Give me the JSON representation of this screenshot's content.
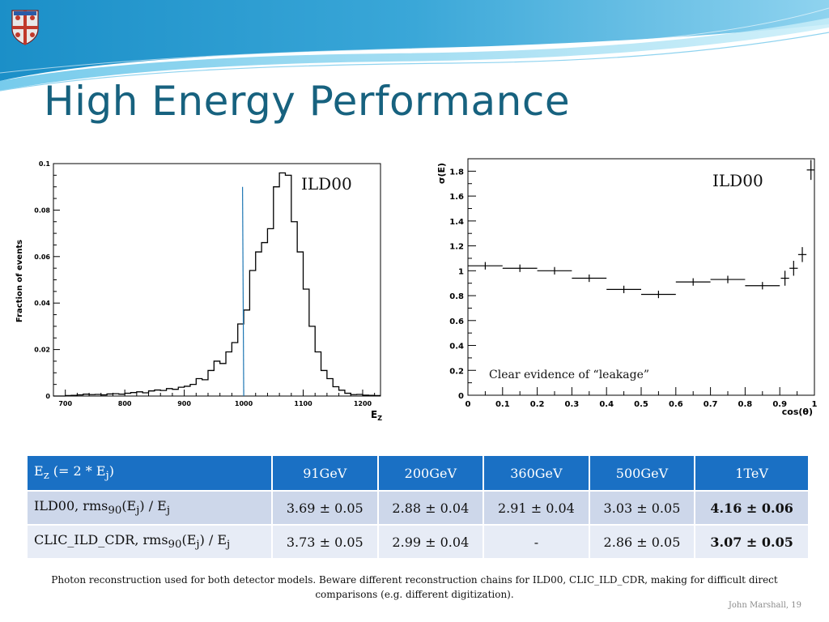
{
  "slide": {
    "title": "High Energy Performance",
    "footnote": "Photon reconstruction used for both detector models. Beware different reconstruction chains for ILD00, CLIC_ILD_CDR, making for difficult direct comparisons (e.g. different digitization).",
    "credit": "John Marshall, 19"
  },
  "colors": {
    "title": "#17627f",
    "table_header": "#1a70c4",
    "row_dark": "#cdd7ea",
    "row_light": "#e7ecf6",
    "fit_line": "#1f77b4"
  },
  "chart_data": [
    {
      "type": "histogram",
      "label": "ILD00",
      "xlabel": "EZ",
      "ylabel": "Fraction of events",
      "xlim": [
        680,
        1230
      ],
      "ylim": [
        0,
        0.1
      ],
      "xticks": [
        700,
        800,
        900,
        1000,
        1100,
        1200
      ],
      "yticks": [
        0,
        0.02,
        0.04,
        0.06,
        0.08,
        0.1
      ],
      "bin_width": 10,
      "bin_start": 680,
      "values": [
        0,
        0,
        0.0002,
        0.0003,
        0.0005,
        0.0008,
        0.0006,
        0.0007,
        0.0005,
        0.0009,
        0.001,
        0.0008,
        0.0012,
        0.0015,
        0.0018,
        0.0014,
        0.0022,
        0.0026,
        0.0024,
        0.0032,
        0.0029,
        0.0038,
        0.0042,
        0.005,
        0.0075,
        0.007,
        0.011,
        0.015,
        0.014,
        0.019,
        0.023,
        0.031,
        0.037,
        0.054,
        0.062,
        0.066,
        0.072,
        0.09,
        0.096,
        0.095,
        0.075,
        0.062,
        0.046,
        0.03,
        0.019,
        0.011,
        0.0075,
        0.004,
        0.0025,
        0.0012,
        0.0006,
        0.0007,
        0.0004,
        0.0003,
        0.0002
      ],
      "fit_line_x": [
        998,
        1000
      ]
    },
    {
      "type": "scatter",
      "label": "ILD00",
      "annotation": "Clear evidence of “leakage”",
      "xlabel": "cos(θ)",
      "ylabel": "σ(E)",
      "xlim": [
        0,
        1
      ],
      "ylim": [
        0,
        1.9
      ],
      "xticks": [
        "0",
        "0.1",
        "0.2",
        "0.3",
        "0.4",
        "0.5",
        "0.6",
        "0.7",
        "0.8",
        "0.9",
        "1"
      ],
      "yticks": [
        "0",
        "0.2",
        "0.4",
        "0.6",
        "0.8",
        "1",
        "1.2",
        "1.4",
        "1.6",
        "1.8"
      ],
      "points": [
        {
          "x": 0.05,
          "y": 1.04,
          "xerr": 0.05,
          "yerr": 0.03
        },
        {
          "x": 0.15,
          "y": 1.02,
          "xerr": 0.05,
          "yerr": 0.03
        },
        {
          "x": 0.25,
          "y": 1.0,
          "xerr": 0.05,
          "yerr": 0.03
        },
        {
          "x": 0.35,
          "y": 0.94,
          "xerr": 0.05,
          "yerr": 0.03
        },
        {
          "x": 0.45,
          "y": 0.85,
          "xerr": 0.05,
          "yerr": 0.03
        },
        {
          "x": 0.55,
          "y": 0.81,
          "xerr": 0.05,
          "yerr": 0.03
        },
        {
          "x": 0.65,
          "y": 0.91,
          "xerr": 0.05,
          "yerr": 0.03
        },
        {
          "x": 0.75,
          "y": 0.93,
          "xerr": 0.05,
          "yerr": 0.03
        },
        {
          "x": 0.85,
          "y": 0.88,
          "xerr": 0.05,
          "yerr": 0.03
        },
        {
          "x": 0.915,
          "y": 0.94,
          "xerr": 0.012,
          "yerr": 0.06
        },
        {
          "x": 0.94,
          "y": 1.02,
          "xerr": 0.012,
          "yerr": 0.06
        },
        {
          "x": 0.965,
          "y": 1.13,
          "xerr": 0.012,
          "yerr": 0.06
        },
        {
          "x": 0.99,
          "y": 1.81,
          "xerr": 0.012,
          "yerr": 0.08
        }
      ]
    }
  ],
  "table": {
    "header": {
      "first": {
        "pre": "E",
        "sub1": "z",
        "mid": " (= 2 * E",
        "sub2": "j",
        "post": ")"
      },
      "cols": [
        "91GeV",
        "200GeV",
        "360GeV",
        "500GeV",
        "1TeV"
      ]
    },
    "rows": [
      {
        "label": {
          "pre": "ILD00, rms",
          "sub1": "90",
          "mid": "(E",
          "sub2": "j",
          "mid2": ") / E",
          "sub3": "j"
        },
        "values": [
          "3.69 ± 0.05",
          "2.88 ± 0.04",
          "2.91 ± 0.04",
          "3.03 ± 0.05",
          "4.16 ± 0.06"
        ]
      },
      {
        "label": {
          "pre": "CLIC_ILD_CDR, rms",
          "sub1": "90",
          "mid": "(E",
          "sub2": "j",
          "mid2": ") / E",
          "sub3": "j"
        },
        "values": [
          "3.73 ± 0.05",
          "2.99 ± 0.04",
          "-",
          "2.86 ± 0.05",
          "3.07 ± 0.05"
        ]
      }
    ]
  }
}
